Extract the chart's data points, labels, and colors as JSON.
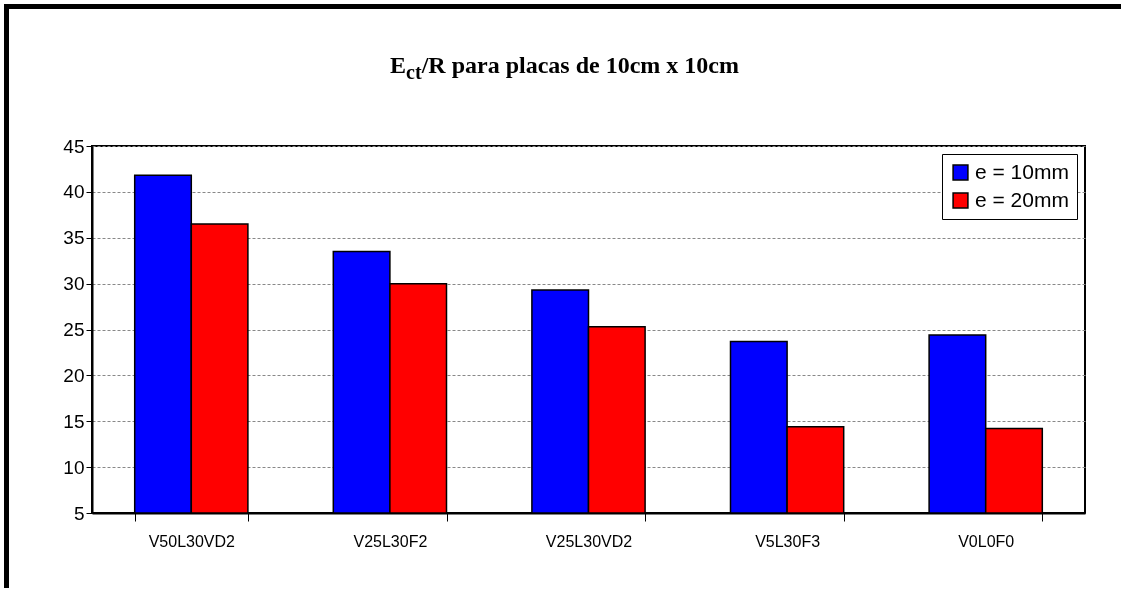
{
  "chart_data": {
    "type": "bar",
    "title": "E$_{ct}$/R para placas de 10cm x 10cm",
    "categories": [
      "V50L30VD2",
      "V25L30F2",
      "V25L30VD2",
      "V5L30F3",
      "V0L0F0"
    ],
    "series": [
      {
        "name": "e = 10mm",
        "color": "#0000ff",
        "values": [
          41.8,
          33.5,
          29.3,
          23.7,
          24.4
        ]
      },
      {
        "name": "e = 20mm",
        "color": "#ff0000",
        "values": [
          36.5,
          30.0,
          25.3,
          14.4,
          14.2
        ]
      }
    ],
    "ylim": [
      5,
      45
    ],
    "yticks": [
      5,
      10,
      15,
      20,
      25,
      30,
      35,
      40,
      45
    ],
    "grid": "y",
    "legend": "top right"
  }
}
